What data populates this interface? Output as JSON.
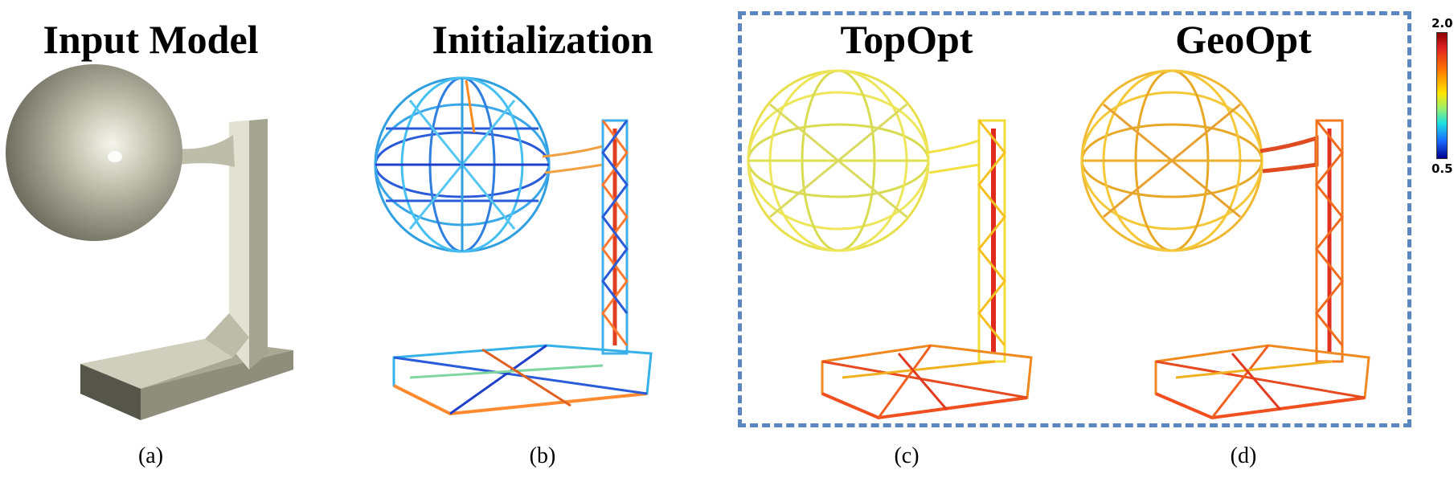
{
  "panels": [
    {
      "title": "Input Model",
      "caption": "(a)"
    },
    {
      "title": "Initialization",
      "caption": "(b)"
    },
    {
      "title": "TopOpt",
      "caption": "(c)"
    },
    {
      "title": "GeoOpt",
      "caption": "(d)"
    }
  ],
  "colorbar": {
    "max_label": "2.0",
    "min_label": "0.5"
  },
  "colors": {
    "frame": "#5b86c0",
    "model_gray": "#c9c8b6"
  }
}
